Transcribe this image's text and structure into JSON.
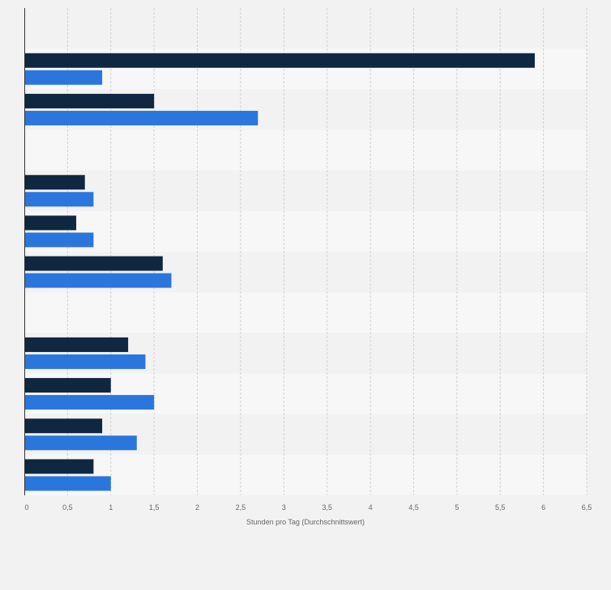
{
  "chart_data": {
    "type": "bar",
    "orientation": "horizontal",
    "title": "",
    "xlabel": "Stunden pro Tag (Durchschnittswert)",
    "ylabel": "",
    "xlim": [
      0,
      6.5
    ],
    "x_ticks": [
      "0",
      "0,5",
      "1",
      "1,5",
      "2",
      "2,5",
      "3",
      "3,5",
      "4",
      "4,5",
      "5",
      "5,5",
      "6",
      "6,5"
    ],
    "categories": [
      "",
      "",
      "",
      "",
      "",
      "",
      "",
      "",
      "",
      "",
      "",
      ""
    ],
    "series": [
      {
        "color": "#0f2741",
        "values": [
          null,
          5.9,
          1.5,
          null,
          0.7,
          0.6,
          1.6,
          null,
          1.2,
          1.0,
          0.9,
          0.8
        ]
      },
      {
        "color": "#2a76dd",
        "values": [
          null,
          0.9,
          2.7,
          null,
          0.8,
          0.8,
          1.7,
          null,
          1.4,
          1.5,
          1.3,
          1.0
        ]
      }
    ],
    "grid": true,
    "legend": "none"
  }
}
